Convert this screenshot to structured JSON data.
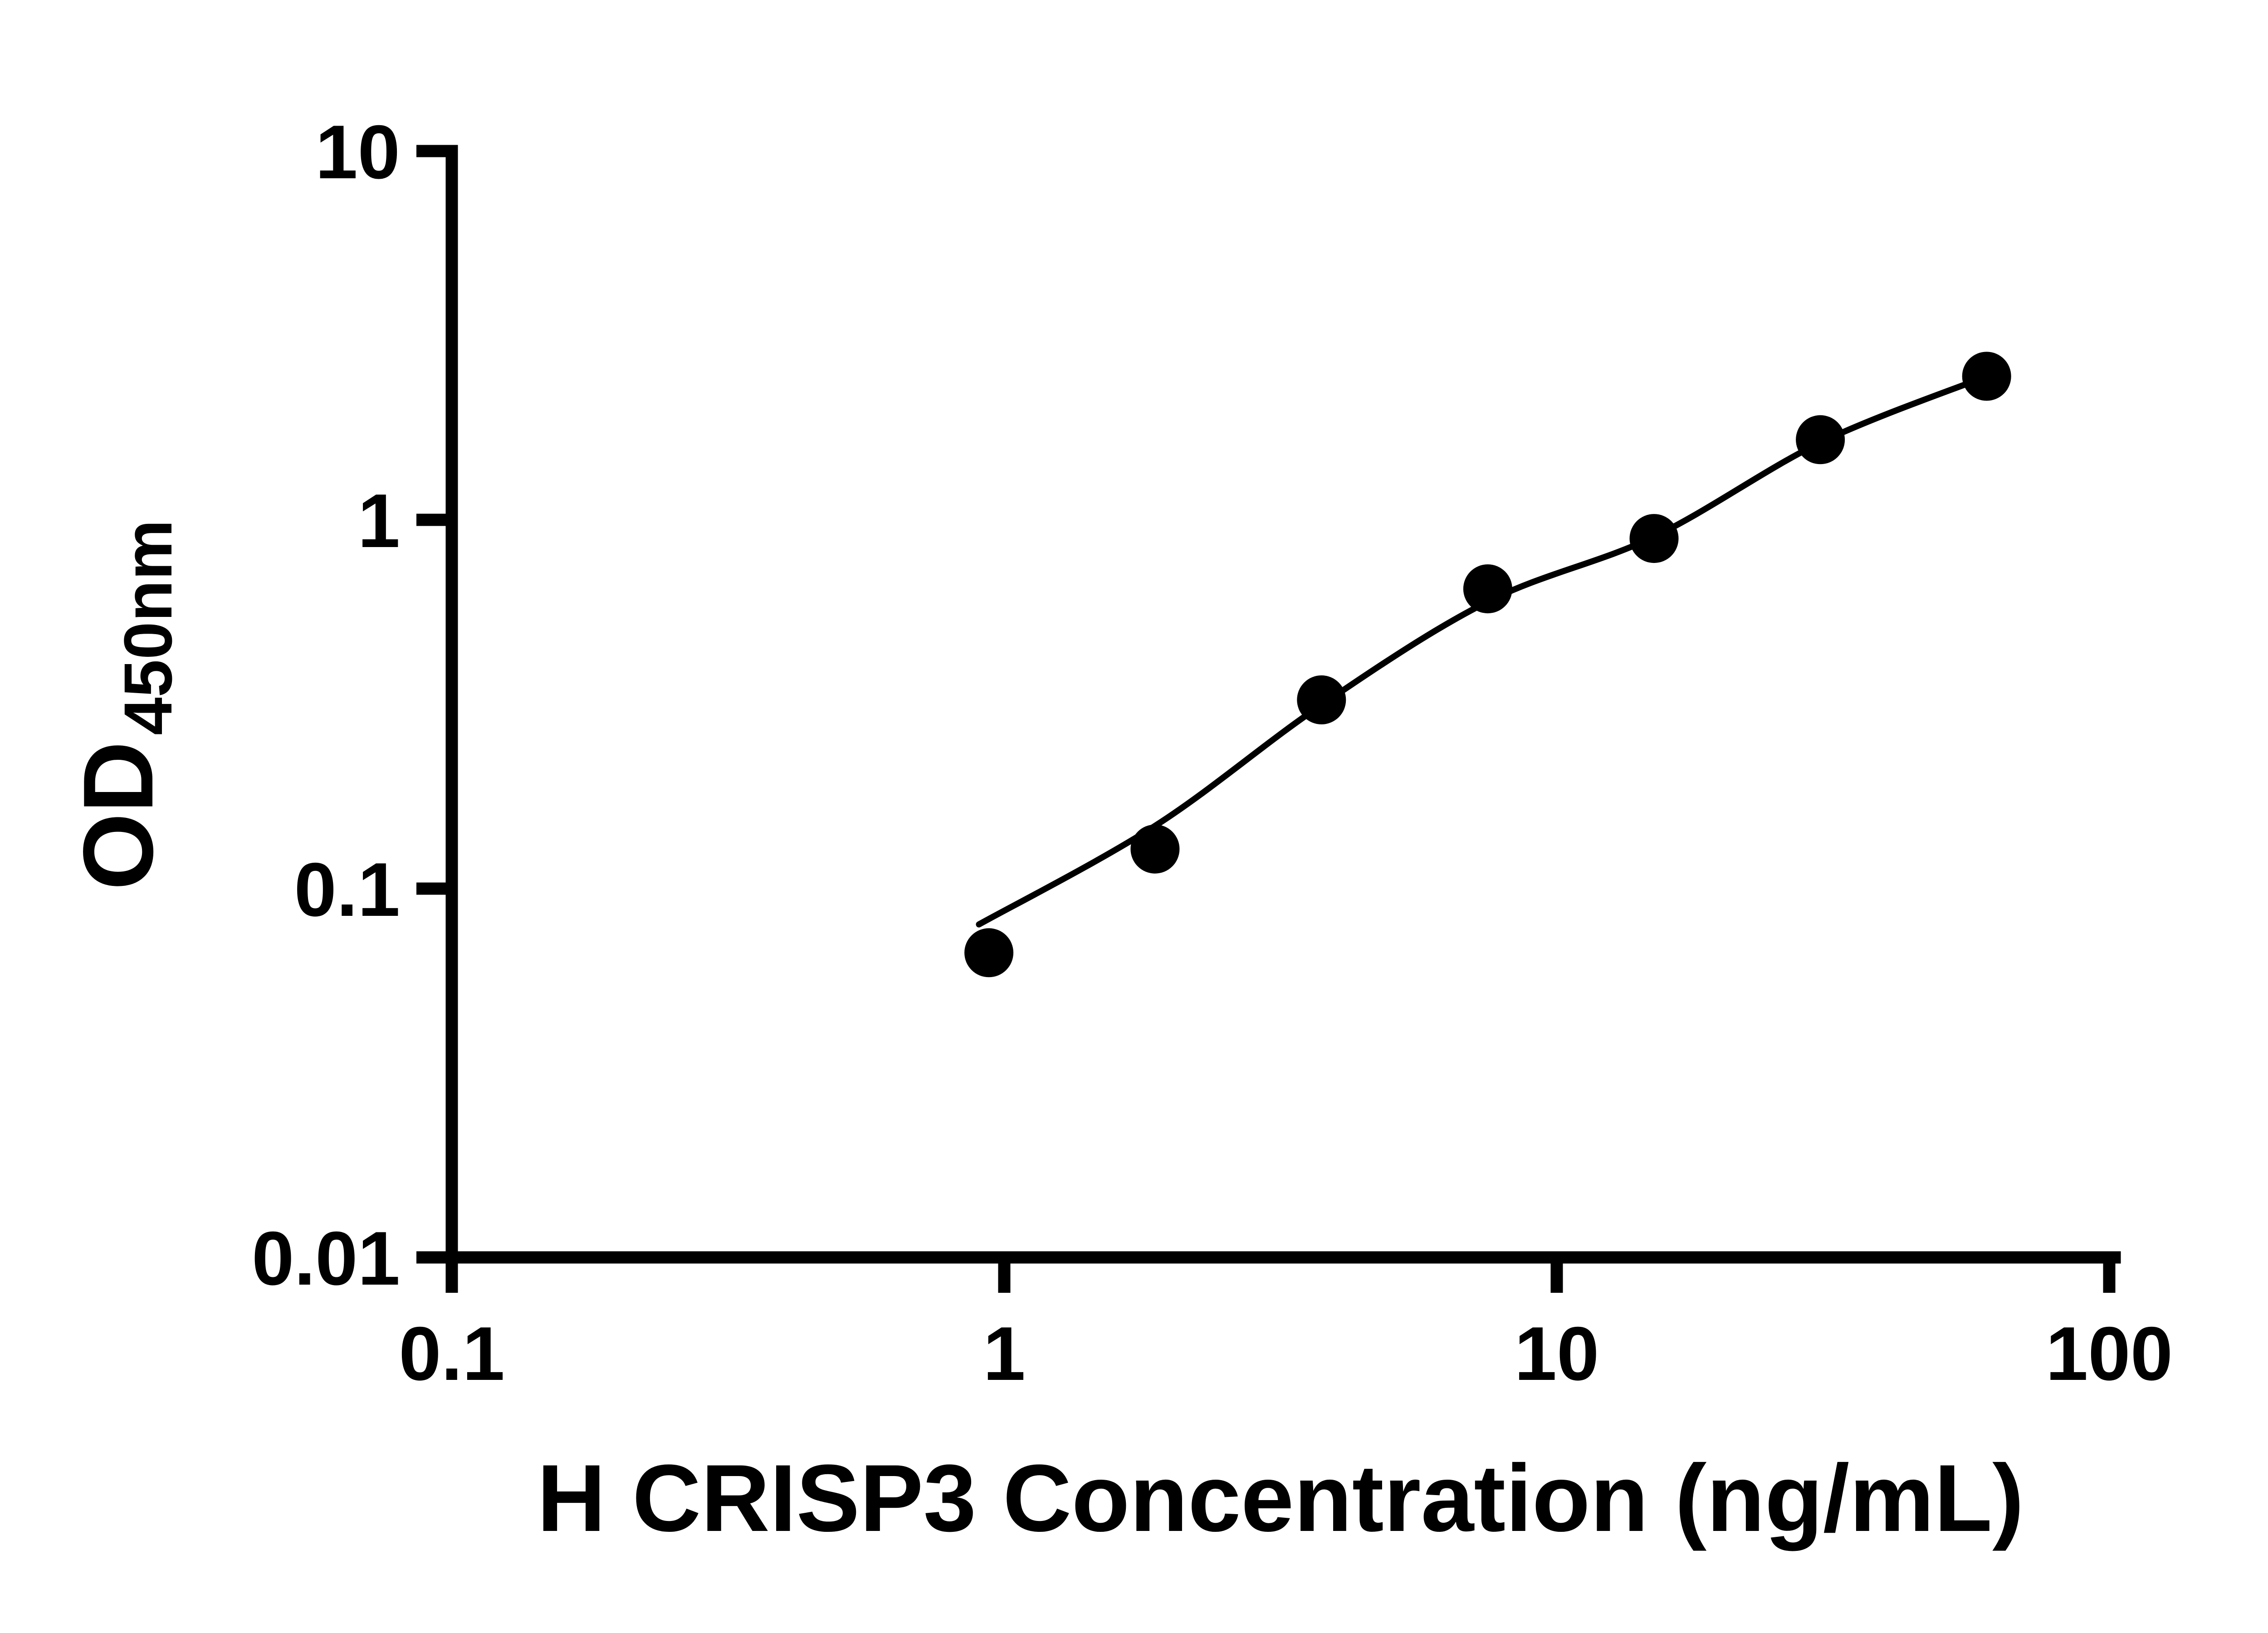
{
  "figure": {
    "background_color": "#ffffff",
    "ink_color": "#000000"
  },
  "chart_data": {
    "type": "scatter",
    "title": "",
    "xlabel": "H CRISP3 Concentration (ng/mL)",
    "ylabel": "OD450nm",
    "ylabel_main": "OD",
    "ylabel_sub": "450nm",
    "x_scale": "log",
    "y_scale": "log",
    "xlim": [
      0.1,
      100
    ],
    "ylim": [
      0.01,
      10
    ],
    "grid": false,
    "legend": "none",
    "x_ticks": [
      {
        "value": 0.1,
        "label": "0.1"
      },
      {
        "value": 1,
        "label": "1"
      },
      {
        "value": 10,
        "label": "10"
      },
      {
        "value": 100,
        "label": "100"
      }
    ],
    "y_ticks": [
      {
        "value": 0.01,
        "label": "0.01"
      },
      {
        "value": 0.1,
        "label": "0.1"
      },
      {
        "value": 1,
        "label": "1"
      },
      {
        "value": 10,
        "label": "10"
      }
    ],
    "series": [
      {
        "name": "standard-points",
        "type": "scatter",
        "marker": "circle",
        "color": "#000000",
        "points": [
          [
            0.938,
            0.067
          ],
          [
            1.875,
            0.128
          ],
          [
            3.75,
            0.325
          ],
          [
            7.5,
            0.65
          ],
          [
            15,
            0.89
          ],
          [
            30,
            1.65
          ],
          [
            60,
            2.45
          ]
        ]
      },
      {
        "name": "fit-curve",
        "type": "line",
        "color": "#000000",
        "points": [
          [
            0.9,
            0.08
          ],
          [
            1.875,
            0.148
          ],
          [
            3.75,
            0.315
          ],
          [
            7.5,
            0.6
          ],
          [
            15,
            0.9
          ],
          [
            30,
            1.62
          ],
          [
            60,
            2.45
          ]
        ]
      }
    ]
  }
}
